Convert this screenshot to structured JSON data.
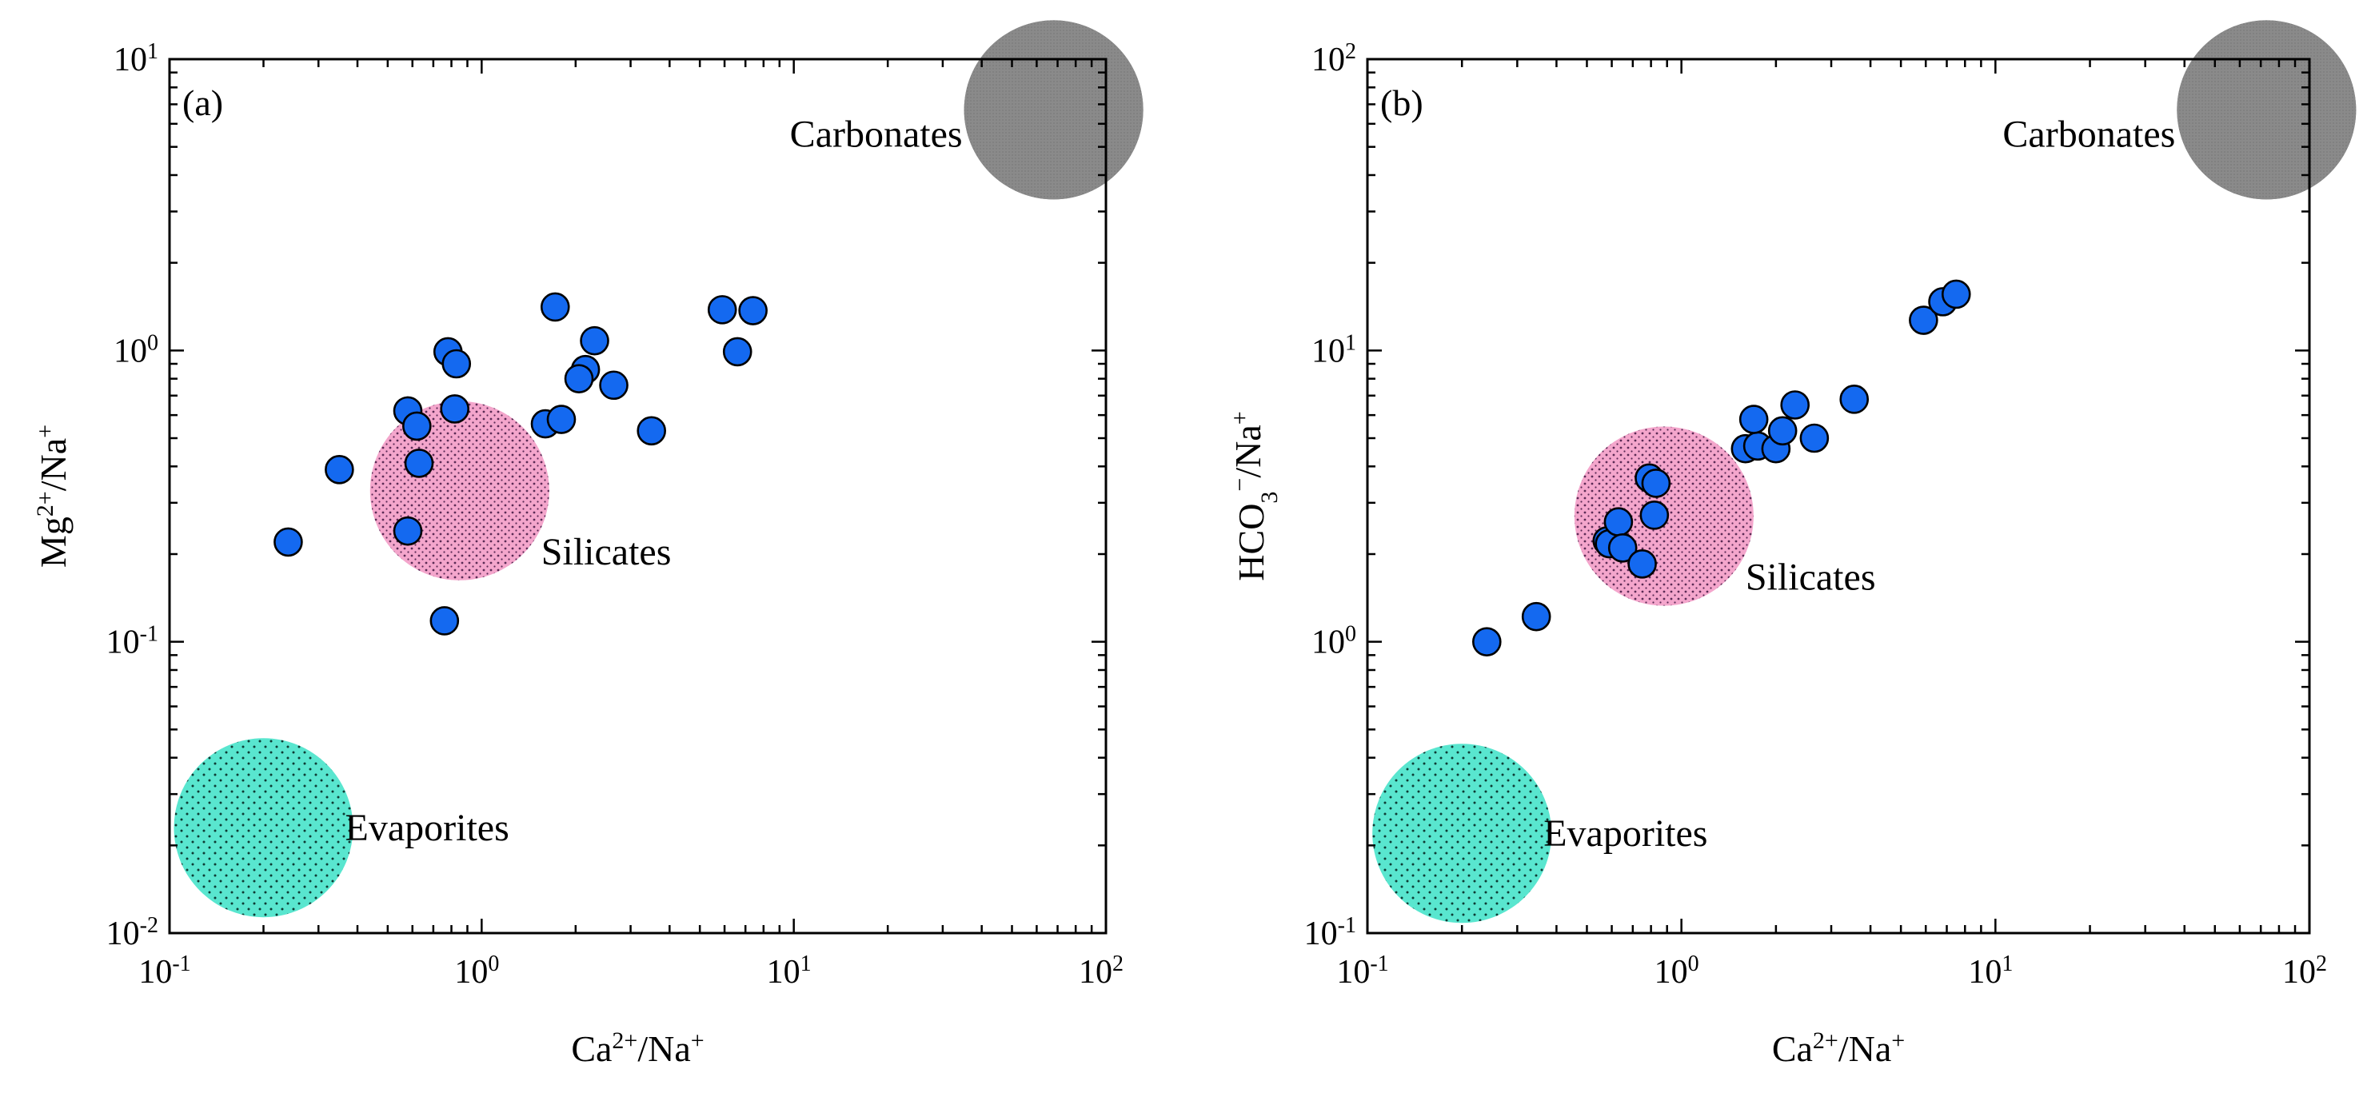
{
  "chart_data": [
    {
      "type": "scatter",
      "panel_label": "(a)",
      "xscale": "log",
      "yscale": "log",
      "xlim": [
        0.1,
        100
      ],
      "ylim": [
        0.01,
        10
      ],
      "xlabel": {
        "base": "Ca",
        "sup": "2+",
        "mid": "/Na",
        "sup2": "+"
      },
      "ylabel": {
        "base": "Mg",
        "sup": "2+",
        "mid": "/Na",
        "sup2": "+"
      },
      "xticks": [
        {
          "value": 0.1,
          "base": "10",
          "exp": "-1"
        },
        {
          "value": 1,
          "base": "10",
          "exp": "0"
        },
        {
          "value": 10,
          "base": "10",
          "exp": "1"
        },
        {
          "value": 100,
          "base": "10",
          "exp": "2"
        }
      ],
      "yticks": [
        {
          "value": 0.01,
          "base": "10",
          "exp": "-2"
        },
        {
          "value": 0.1,
          "base": "10",
          "exp": "-1"
        },
        {
          "value": 1,
          "base": "10",
          "exp": "0"
        },
        {
          "value": 10,
          "base": "10",
          "exp": "1"
        }
      ],
      "regions": [
        {
          "name": "Carbonates",
          "x": 68,
          "y": 6.7,
          "color": "#888888",
          "dots": "#777777"
        },
        {
          "name": "Silicates",
          "x": 0.85,
          "y": 0.33,
          "color": "#f4a6cc",
          "dots": "#5a2a55"
        },
        {
          "name": "Evaporites",
          "x": 0.2,
          "y": 0.023,
          "color": "#59e6cf",
          "dots": "#0d3a33"
        }
      ],
      "points": [
        [
          0.24,
          0.22
        ],
        [
          0.35,
          0.39
        ],
        [
          0.58,
          0.62
        ],
        [
          0.62,
          0.55
        ],
        [
          0.63,
          0.41
        ],
        [
          0.58,
          0.24
        ],
        [
          0.78,
          0.99
        ],
        [
          0.83,
          0.9
        ],
        [
          0.82,
          0.63
        ],
        [
          0.76,
          0.118
        ],
        [
          1.72,
          1.41
        ],
        [
          2.3,
          1.08
        ],
        [
          2.15,
          0.86
        ],
        [
          2.05,
          0.8
        ],
        [
          2.65,
          0.76
        ],
        [
          1.6,
          0.56
        ],
        [
          1.8,
          0.58
        ],
        [
          3.5,
          0.53
        ],
        [
          5.9,
          1.38
        ],
        [
          7.4,
          1.37
        ],
        [
          6.6,
          0.99
        ]
      ]
    },
    {
      "type": "scatter",
      "panel_label": "(b)",
      "xscale": "log",
      "yscale": "log",
      "xlim": [
        0.1,
        100
      ],
      "ylim": [
        0.1,
        100
      ],
      "xlabel": {
        "base": "Ca",
        "sup": "2+",
        "mid": "/Na",
        "sup2": "+"
      },
      "ylabel": {
        "base": "HCO",
        "sub": "3",
        "sup": "−",
        "mid": "/Na",
        "sup2": "+"
      },
      "xticks": [
        {
          "value": 0.1,
          "base": "10",
          "exp": "-1"
        },
        {
          "value": 1,
          "base": "10",
          "exp": "0"
        },
        {
          "value": 10,
          "base": "10",
          "exp": "1"
        },
        {
          "value": 100,
          "base": "10",
          "exp": "2"
        }
      ],
      "yticks": [
        {
          "value": 0.1,
          "base": "10",
          "exp": "-1"
        },
        {
          "value": 1,
          "base": "10",
          "exp": "0"
        },
        {
          "value": 10,
          "base": "10",
          "exp": "1"
        },
        {
          "value": 100,
          "base": "10",
          "exp": "2"
        }
      ],
      "regions": [
        {
          "name": "Carbonates",
          "x": 73,
          "y": 67,
          "color": "#888888",
          "dots": "#777777"
        },
        {
          "name": "Silicates",
          "x": 0.88,
          "y": 2.7,
          "color": "#f4a6cc",
          "dots": "#5a2a55"
        },
        {
          "name": "Evaporites",
          "x": 0.2,
          "y": 0.22,
          "color": "#59e6cf",
          "dots": "#0d3a33"
        }
      ],
      "points": [
        [
          0.24,
          1.0
        ],
        [
          0.345,
          1.22
        ],
        [
          0.58,
          2.22
        ],
        [
          0.59,
          2.17
        ],
        [
          0.63,
          2.58
        ],
        [
          0.65,
          2.1
        ],
        [
          0.75,
          1.85
        ],
        [
          0.79,
          3.65
        ],
        [
          0.83,
          3.5
        ],
        [
          0.82,
          2.72
        ],
        [
          1.6,
          4.6
        ],
        [
          1.75,
          4.7
        ],
        [
          1.7,
          5.8
        ],
        [
          2.0,
          4.6
        ],
        [
          2.1,
          5.3
        ],
        [
          2.3,
          6.5
        ],
        [
          2.65,
          5.0
        ],
        [
          3.55,
          6.8
        ],
        [
          5.9,
          12.7
        ],
        [
          6.8,
          14.7
        ],
        [
          7.5,
          15.6
        ]
      ]
    }
  ]
}
